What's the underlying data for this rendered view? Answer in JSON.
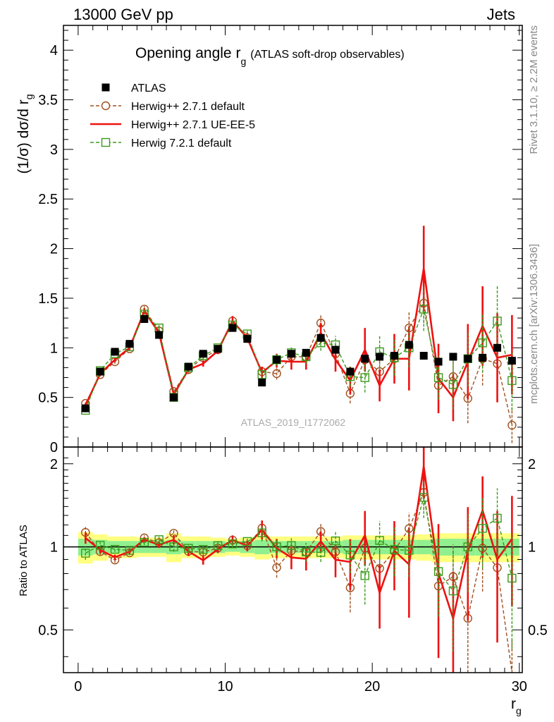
{
  "header": {
    "left": "13000 GeV pp",
    "right": "Jets"
  },
  "side_labels": {
    "rivet": "Rivet 3.1.10, ≥ 2.2M events",
    "mcplots": "mcplots.cern.ch [arXiv:1306.3436]"
  },
  "chart_data": {
    "type": "line",
    "title_main": "Opening angle r",
    "title_sub": "g",
    "title_tail": "(ATLAS soft-drop observables)",
    "watermark": "ATLAS_2019_I1772062",
    "ylabel": "(1/σ) dσ/d r",
    "ylabel_sub": "g",
    "xlabel": "r",
    "xlabel_sub": "g",
    "ratio_ylabel": "Ratio to ATLAS",
    "xlim": [
      -1,
      30.2
    ],
    "ylim": [
      0,
      4.25
    ],
    "ratio_ylim": [
      0.35,
      2.3
    ],
    "x_ticks": [
      "0",
      "10",
      "20",
      "30"
    ],
    "y_ticks": [
      "0",
      "0.5",
      "1",
      "1.5",
      "2",
      "2.5",
      "3",
      "3.5",
      "4"
    ],
    "ratio_y_ticks": [
      "0.5",
      "1",
      "2"
    ],
    "x": [
      0.5,
      1.5,
      2.5,
      3.5,
      4.5,
      5.5,
      6.5,
      7.5,
      8.5,
      9.5,
      10.5,
      11.5,
      12.5,
      13.5,
      14.5,
      15.5,
      16.5,
      17.5,
      18.5,
      19.5,
      20.5,
      21.5,
      22.5,
      23.5,
      24.5,
      25.5,
      26.5,
      27.5,
      28.5,
      29.5
    ],
    "data": {
      "name": "ATLAS",
      "color": "#000000",
      "values": [
        0.39,
        0.76,
        0.96,
        1.04,
        1.29,
        1.13,
        0.5,
        0.81,
        0.94,
        0.99,
        1.2,
        1.09,
        0.65,
        0.88,
        0.94,
        0.95,
        1.1,
        0.98,
        0.76,
        0.89,
        0.91,
        0.92,
        1.03,
        0.92,
        0.86,
        0.91,
        0.89,
        0.9,
        1.0,
        0.87
      ],
      "ratio_band_inner": [
        0.07,
        0.06,
        0.05,
        0.05,
        0.05,
        0.05,
        0.06,
        0.05,
        0.05,
        0.05,
        0.04,
        0.05,
        0.06,
        0.05,
        0.05,
        0.05,
        0.05,
        0.05,
        0.06,
        0.06,
        0.06,
        0.06,
        0.06,
        0.06,
        0.07,
        0.07,
        0.07,
        0.07,
        0.07,
        0.07
      ],
      "ratio_band_outer": [
        0.13,
        0.11,
        0.09,
        0.09,
        0.08,
        0.08,
        0.12,
        0.09,
        0.09,
        0.08,
        0.07,
        0.08,
        0.1,
        0.09,
        0.09,
        0.09,
        0.09,
        0.09,
        0.1,
        0.1,
        0.1,
        0.1,
        0.1,
        0.11,
        0.12,
        0.12,
        0.12,
        0.12,
        0.12,
        0.12
      ]
    },
    "series": [
      {
        "name": "Herwig++ 2.7.1 default",
        "color": "#a0501e",
        "style": "dashed",
        "marker": "circle",
        "values": [
          0.44,
          0.73,
          0.86,
          0.99,
          1.39,
          1.17,
          0.56,
          0.78,
          0.9,
          0.98,
          1.27,
          1.1,
          0.76,
          0.74,
          0.91,
          0.91,
          1.25,
          0.94,
          0.54,
          0.88,
          0.76,
          0.89,
          1.2,
          1.45,
          0.62,
          0.71,
          0.49,
          0.89,
          0.84,
          0.22
        ],
        "errors": [
          0.02,
          0.02,
          0.02,
          0.02,
          0.03,
          0.03,
          0.02,
          0.02,
          0.03,
          0.03,
          0.04,
          0.04,
          0.05,
          0.06,
          0.06,
          0.07,
          0.08,
          0.09,
          0.1,
          0.12,
          0.13,
          0.15,
          0.17,
          0.2,
          0.2,
          0.22,
          0.25,
          0.27,
          0.3,
          0.18
        ]
      },
      {
        "name": "Herwig++ 2.7.1 UE-EE-5",
        "color": "#ee1111",
        "style": "solid",
        "marker": "none",
        "values": [
          0.42,
          0.74,
          0.88,
          1.0,
          1.37,
          1.15,
          0.53,
          0.78,
          0.84,
          0.97,
          1.27,
          1.1,
          0.75,
          0.87,
          0.86,
          0.86,
          1.15,
          0.88,
          0.67,
          0.98,
          0.62,
          0.89,
          0.89,
          1.8,
          0.69,
          0.5,
          0.86,
          1.22,
          0.9,
          0.93
        ],
        "errors": [
          0.02,
          0.02,
          0.02,
          0.02,
          0.03,
          0.03,
          0.02,
          0.03,
          0.03,
          0.03,
          0.05,
          0.05,
          0.06,
          0.07,
          0.08,
          0.08,
          0.1,
          0.12,
          0.14,
          0.22,
          0.16,
          0.25,
          0.32,
          0.43,
          0.35,
          0.24,
          0.38,
          0.4,
          0.45,
          0.4
        ]
      },
      {
        "name": "Herwig 7.2.1 default",
        "color": "#3a9a1a",
        "style": "dashed",
        "marker": "square",
        "values": [
          0.37,
          0.77,
          0.94,
          1.01,
          1.34,
          1.2,
          0.5,
          0.8,
          0.92,
          1.0,
          1.23,
          1.14,
          0.73,
          0.88,
          0.95,
          0.91,
          1.05,
          1.03,
          0.71,
          0.7,
          0.96,
          0.9,
          1.0,
          1.39,
          0.7,
          0.63,
          0.89,
          1.05,
          1.27,
          0.67
        ],
        "errors": [
          0.02,
          0.02,
          0.02,
          0.02,
          0.03,
          0.03,
          0.02,
          0.02,
          0.03,
          0.03,
          0.04,
          0.04,
          0.05,
          0.06,
          0.06,
          0.07,
          0.08,
          0.09,
          0.1,
          0.15,
          0.17,
          0.18,
          0.2,
          0.22,
          0.22,
          0.25,
          0.28,
          0.3,
          0.36,
          0.3
        ]
      }
    ]
  }
}
